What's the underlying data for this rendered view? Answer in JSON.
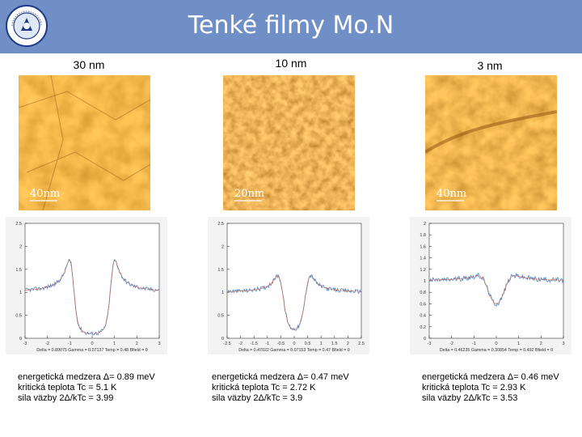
{
  "header": {
    "title": "Tenké filmy Mo.N",
    "logo_text": "CENTRAL · SLOVENIA"
  },
  "colors": {
    "header_bg": "#6f8fc6",
    "fit_line": "#e05a3a",
    "data_line": "#4a86c5"
  },
  "columns": [
    {
      "title": "30 nm",
      "scalebar": "40nm",
      "line1": "energetická medzera Δ= 0.89 meV",
      "line2": "kritická teplota Tc = 5.1 K",
      "line3": "sila väzby 2Δ/kTc = 3.99",
      "footer": "Delta = 0.89075  Gamma = 0.07137  Temp = 0.48  Bfield = 0"
    },
    {
      "title": "10 nm",
      "scalebar": "20nm",
      "line1": "energetická medzera Δ= 0.47 meV",
      "line2": "kritická teplota Tc = 2.72 K",
      "line3": "sila väzby 2Δ/kTc = 3.9",
      "footer": "Delta = 0.47022  Gamma = 0.07153  Temp = 0.47  Bfield = 0"
    },
    {
      "title": "3 nm",
      "scalebar": "40nm",
      "line1": "energetická medzera Δ= 0.46 meV",
      "line2": "kritická teplota Tc = 2.93 K",
      "line3": "sila väzby 2Δ/kTc = 3.53",
      "footer": "Delta = 0.46235  Gamma = 0.30854  Temp = 0.492  Bfield = 0"
    }
  ],
  "chart_data": [
    {
      "type": "line",
      "xlim": [
        -3,
        3
      ],
      "ylim": [
        0,
        2.5
      ],
      "x_ticks": [
        "-3",
        "-2",
        "-1",
        "0",
        "1",
        "2",
        "3"
      ],
      "y_ticks": [
        "0",
        "0.5",
        "1",
        "1.5",
        "2",
        "2.5"
      ],
      "model": {
        "gap": 0.89,
        "gamma": 0.07,
        "base": 1.0
      }
    },
    {
      "type": "line",
      "xlim": [
        -2.5,
        2.5
      ],
      "ylim": [
        0,
        2.5
      ],
      "x_ticks": [
        "-2.5",
        "-2",
        "-1.5",
        "-1",
        "-0.5",
        "0",
        "0.5",
        "1",
        "1.5",
        "2",
        "2.5"
      ],
      "y_ticks": [
        "0",
        "0.5",
        "1",
        "1.5",
        "2",
        "2.5"
      ],
      "model": {
        "gap": 0.47,
        "gamma": 0.07,
        "base": 1.0
      }
    },
    {
      "type": "line",
      "xlim": [
        -3,
        3
      ],
      "ylim": [
        0,
        2
      ],
      "x_ticks": [
        "-3",
        "-2",
        "-1",
        "0",
        "1",
        "2",
        "3"
      ],
      "y_ticks": [
        "0",
        "0.2",
        "0.4",
        "0.6",
        "0.8",
        "1",
        "1.2",
        "1.4",
        "1.6",
        "1.8",
        "2"
      ],
      "model": {
        "gap": 0.46,
        "gamma": 0.31,
        "base": 1.0
      }
    }
  ]
}
